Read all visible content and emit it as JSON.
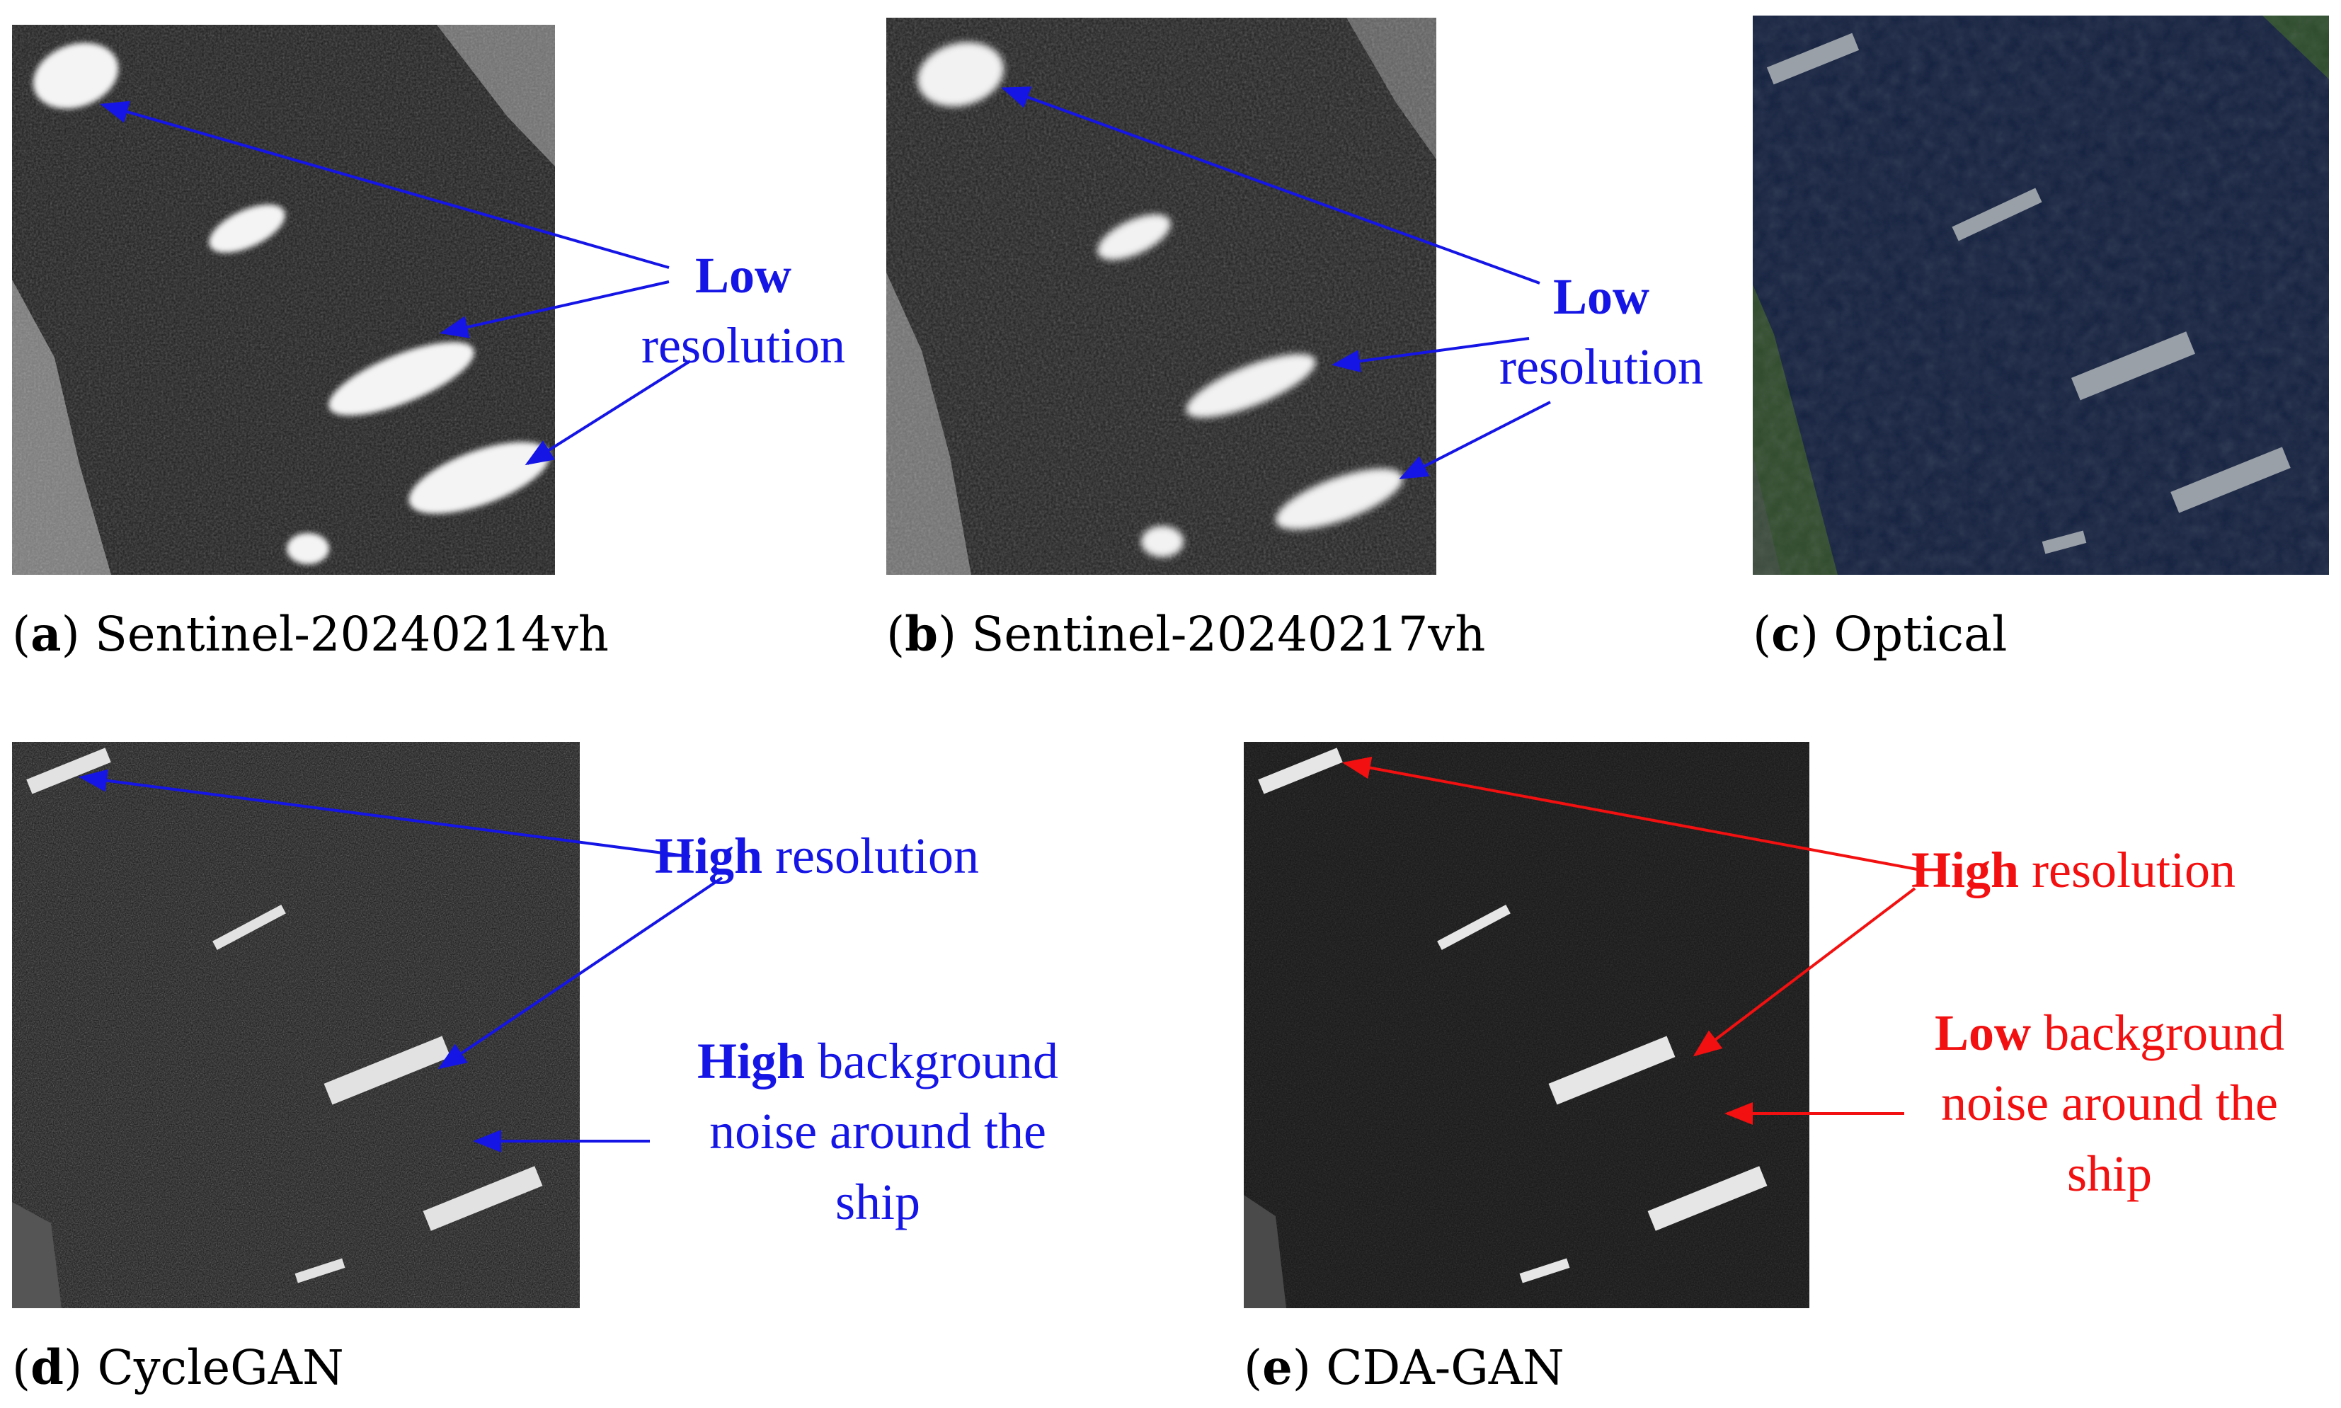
{
  "panels": {
    "a": {
      "letter": "a",
      "caption": " Sentinel-20240214vh"
    },
    "b": {
      "letter": "b",
      "caption": " Sentinel-20240217vh"
    },
    "c": {
      "letter": "c",
      "caption": " Optical"
    },
    "d": {
      "letter": "d",
      "caption": " CycleGAN"
    },
    "e": {
      "letter": "e",
      "caption": " CDA-GAN"
    }
  },
  "annotations": {
    "a_low": {
      "bold": "Low",
      "rest": "resolution"
    },
    "b_low": {
      "bold": "Low",
      "rest": "resolution"
    },
    "d_high_res": {
      "bold": "High",
      "rest": " resolution"
    },
    "d_high_noise": {
      "bold": "High",
      "rest1": " background",
      "line2": "noise around the",
      "line3": "ship"
    },
    "e_high_res": {
      "bold": "High",
      "rest": " resolution"
    },
    "e_low_noise": {
      "bold": "Low",
      "rest1": " background",
      "line2": "noise around the",
      "line3": "ship"
    }
  },
  "colors": {
    "blue_annotation": "#1515e6",
    "red_annotation": "#f21010",
    "sar_background": "#1a1a1a",
    "optical_water": "#14213f"
  },
  "icons": {
    "sar_a": "sar-ships-image",
    "sar_b": "sar-ships-image",
    "optical": "optical-satellite-image",
    "cyclegan": "generated-optical-ships-image",
    "cdagan": "generated-optical-ships-image"
  }
}
